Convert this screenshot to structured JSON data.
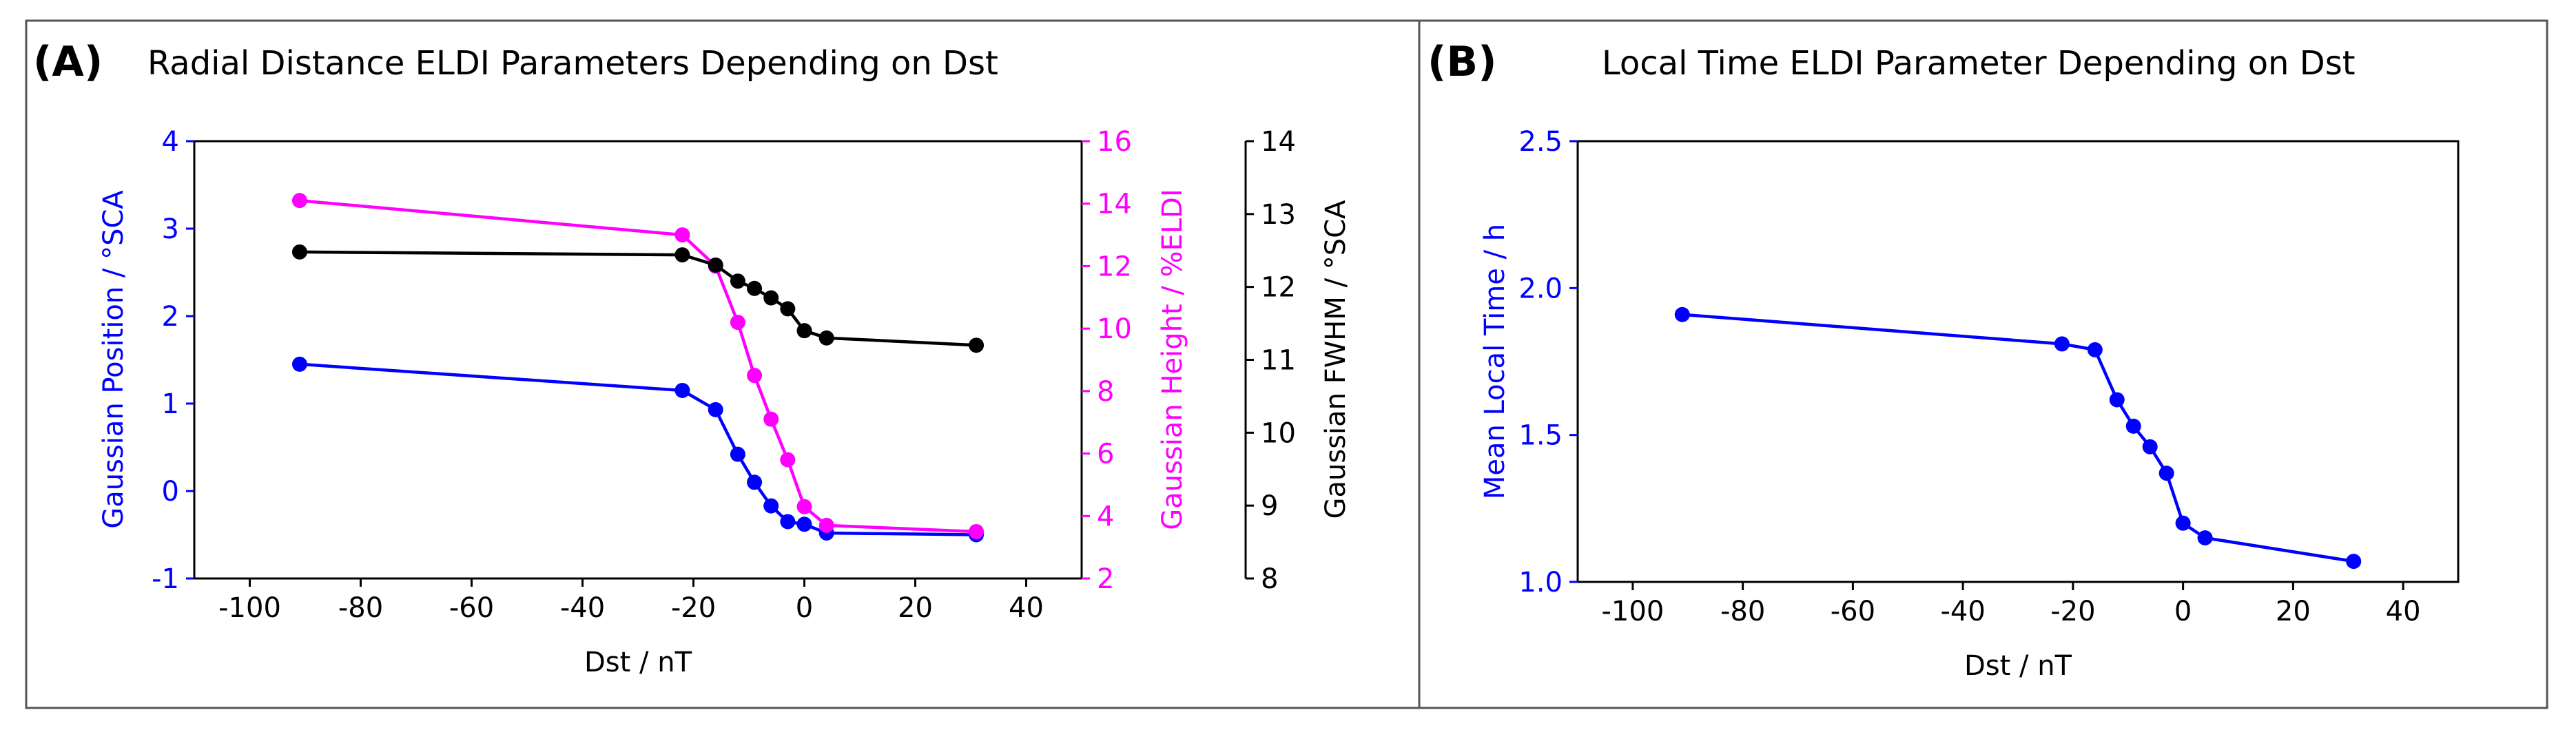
{
  "colors": {
    "blue": "#0000ff",
    "magenta": "#ff00ff",
    "black": "#000000",
    "frame": "#555555"
  },
  "panels": {
    "a": {
      "letter": "(A)",
      "title": "Radial Distance ELDI Parameters Depending on Dst"
    },
    "b": {
      "letter": "(B)",
      "title": "Local Time ELDI Parameter Depending on Dst"
    }
  },
  "chart_data": [
    {
      "type": "line",
      "title": "Radial Distance ELDI Parameters Depending on Dst",
      "xlabel": "Dst / nT",
      "xlim": [
        -110,
        50
      ],
      "xticks": [
        -100,
        -80,
        -60,
        -40,
        -20,
        0,
        20,
        40
      ],
      "xtick_labels": [
        "-100",
        "-80",
        "-60",
        "-40",
        "-20",
        "0",
        "20",
        "40"
      ],
      "axes": [
        {
          "id": "left",
          "label": "Gaussian Position / °SCA",
          "color": "#0000ff",
          "ylim": [
            -1,
            4
          ],
          "ticks": [
            -1,
            0,
            1,
            2,
            3,
            4
          ],
          "tick_labels": [
            "-1",
            "0",
            "1",
            "2",
            "3",
            "4"
          ]
        },
        {
          "id": "right1",
          "label": "Gaussian Height / %ELDI",
          "color": "#ff00ff",
          "ylim": [
            2,
            16
          ],
          "ticks": [
            2,
            4,
            6,
            8,
            10,
            12,
            14,
            16
          ],
          "tick_labels": [
            "2",
            "4",
            "6",
            "8",
            "10",
            "12",
            "14",
            "16"
          ]
        },
        {
          "id": "right2",
          "label": "Gaussian FWHM / °SCA",
          "color": "#000000",
          "ylim": [
            8,
            14
          ],
          "ticks": [
            8,
            9,
            10,
            11,
            12,
            13,
            14
          ],
          "tick_labels": [
            "8",
            "9",
            "10",
            "11",
            "12",
            "13",
            "14"
          ]
        }
      ],
      "series": [
        {
          "name": "Gaussian Position",
          "axis": "left",
          "color": "#0000ff",
          "x": [
            -91,
            -22,
            -16,
            -12,
            -9,
            -6,
            -3,
            0,
            4,
            31
          ],
          "y": [
            1.45,
            1.15,
            0.93,
            0.42,
            0.1,
            -0.17,
            -0.35,
            -0.38,
            -0.48,
            -0.5
          ]
        },
        {
          "name": "Gaussian Height",
          "axis": "right1",
          "color": "#ff00ff",
          "x": [
            -91,
            -22,
            -16,
            -12,
            -9,
            -6,
            -3,
            0,
            4,
            31
          ],
          "y": [
            14.1,
            13.0,
            12.0,
            10.2,
            8.5,
            7.1,
            5.8,
            4.3,
            3.7,
            3.5
          ]
        },
        {
          "name": "Gaussian FWHM",
          "axis": "right2",
          "color": "#000000",
          "x": [
            -91,
            -22,
            -16,
            -12,
            -9,
            -6,
            -3,
            0,
            4,
            31
          ],
          "y": [
            12.48,
            12.44,
            12.3,
            12.08,
            11.98,
            11.85,
            11.7,
            11.4,
            11.3,
            11.2
          ]
        }
      ]
    },
    {
      "type": "line",
      "title": "Local Time ELDI Parameter Depending on Dst",
      "xlabel": "Dst / nT",
      "xlim": [
        -110,
        50
      ],
      "xticks": [
        -100,
        -80,
        -60,
        -40,
        -20,
        0,
        20,
        40
      ],
      "xtick_labels": [
        "-100",
        "-80",
        "-60",
        "-40",
        "-20",
        "0",
        "20",
        "40"
      ],
      "axes": [
        {
          "id": "left",
          "label": "Mean Local Time / h",
          "color": "#0000ff",
          "ylim": [
            1.0,
            2.5
          ],
          "ticks": [
            1.0,
            1.5,
            2.0,
            2.5
          ],
          "tick_labels": [
            "1.0",
            "1.5",
            "2.0",
            "2.5"
          ]
        }
      ],
      "series": [
        {
          "name": "Mean Local Time",
          "axis": "left",
          "color": "#0000ff",
          "x": [
            -91,
            -22,
            -16,
            -12,
            -9,
            -6,
            -3,
            0,
            4,
            31
          ],
          "y": [
            1.91,
            1.81,
            1.79,
            1.62,
            1.53,
            1.46,
            1.37,
            1.2,
            1.15,
            1.07
          ]
        }
      ]
    }
  ]
}
